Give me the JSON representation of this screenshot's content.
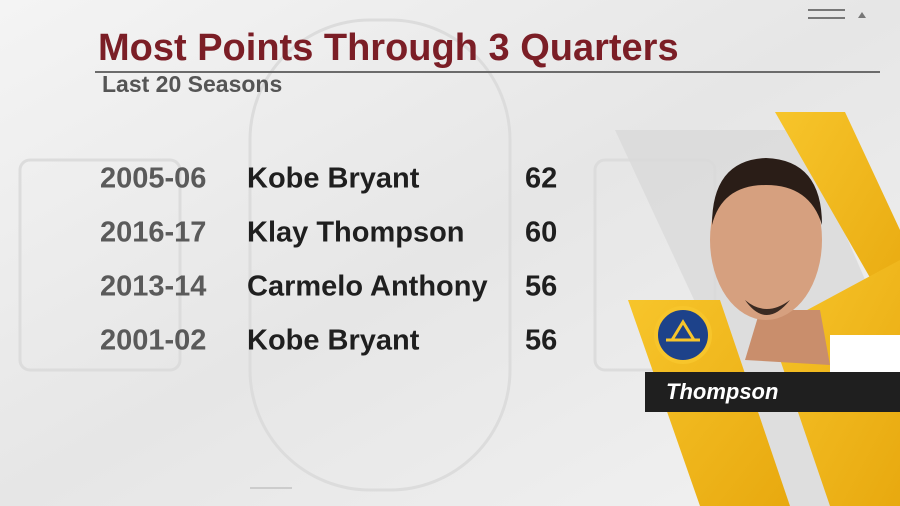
{
  "header": {
    "title": "Most Points Through 3 Quarters",
    "subtitle": "Last 20 Seasons"
  },
  "table": {
    "rows": [
      [
        "2005-06",
        "Kobe Bryant",
        62
      ],
      [
        "2016-17",
        "Klay Thompson",
        60
      ],
      [
        "2013-14",
        "Carmelo Anthony",
        56
      ],
      [
        "2001-02",
        "Kobe Bryant",
        56
      ]
    ]
  },
  "player_card": {
    "name": "Thompson"
  }
}
